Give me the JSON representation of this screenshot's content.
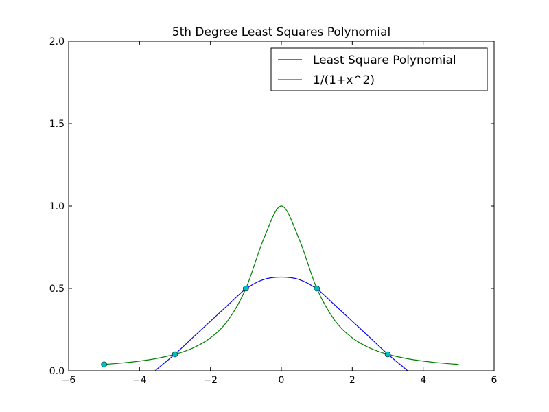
{
  "chart_data": {
    "type": "line",
    "title": "5th Degree Least Squares Polynomial",
    "xlabel": "",
    "ylabel": "",
    "xlim": [
      -6,
      6
    ],
    "ylim": [
      0,
      2
    ],
    "xticks": [
      -6,
      -4,
      -2,
      0,
      2,
      4,
      6
    ],
    "xtick_labels": [
      "−6",
      "−4",
      "−2",
      "0",
      "2",
      "4",
      "6"
    ],
    "yticks": [
      0,
      0.5,
      1,
      1.5,
      2
    ],
    "ytick_labels": [
      "0.0",
      "0.5",
      "1.0",
      "1.5",
      "2.0"
    ],
    "grid": false,
    "legend_position": "top-right",
    "series": [
      {
        "name": "Least Square Polynomial",
        "color": "#0000ff",
        "x": [
          -5,
          -4.5,
          -4,
          -3.5,
          -3,
          -2.5,
          -2,
          -1.5,
          -1,
          -0.5,
          0,
          0.5,
          1,
          1.5,
          2,
          2.5,
          3,
          3.5,
          4,
          4.5,
          5
        ],
        "y": [
          -0.0446,
          -0.1339,
          -0.0796,
          0.0113,
          0.1014,
          0.2011,
          0.3009,
          0.4003,
          0.4972,
          0.554,
          0.5687,
          0.554,
          0.4972,
          0.4003,
          0.3009,
          0.2011,
          0.1014,
          0.0113,
          -0.0796,
          -0.1339,
          -0.0446
        ]
      },
      {
        "name": "1/(1+x^2)",
        "color": "#008000",
        "x": [
          -5,
          -4.5,
          -4,
          -3.5,
          -3,
          -2.5,
          -2,
          -1.5,
          -1,
          -0.5,
          0,
          0.5,
          1,
          1.5,
          2,
          2.5,
          3,
          3.5,
          4,
          4.5,
          5
        ],
        "y": [
          0.0385,
          0.0471,
          0.0588,
          0.0755,
          0.1,
          0.1379,
          0.2,
          0.3077,
          0.5,
          0.8,
          1.0,
          0.8,
          0.5,
          0.3077,
          0.2,
          0.1379,
          0.1,
          0.0755,
          0.0588,
          0.0471,
          0.0385
        ]
      }
    ],
    "markers": {
      "color": "#00bfbf",
      "x": [
        -5,
        -3,
        -1,
        1,
        3
      ],
      "y": [
        0.0385,
        0.1,
        0.5,
        0.5,
        0.1
      ]
    }
  }
}
